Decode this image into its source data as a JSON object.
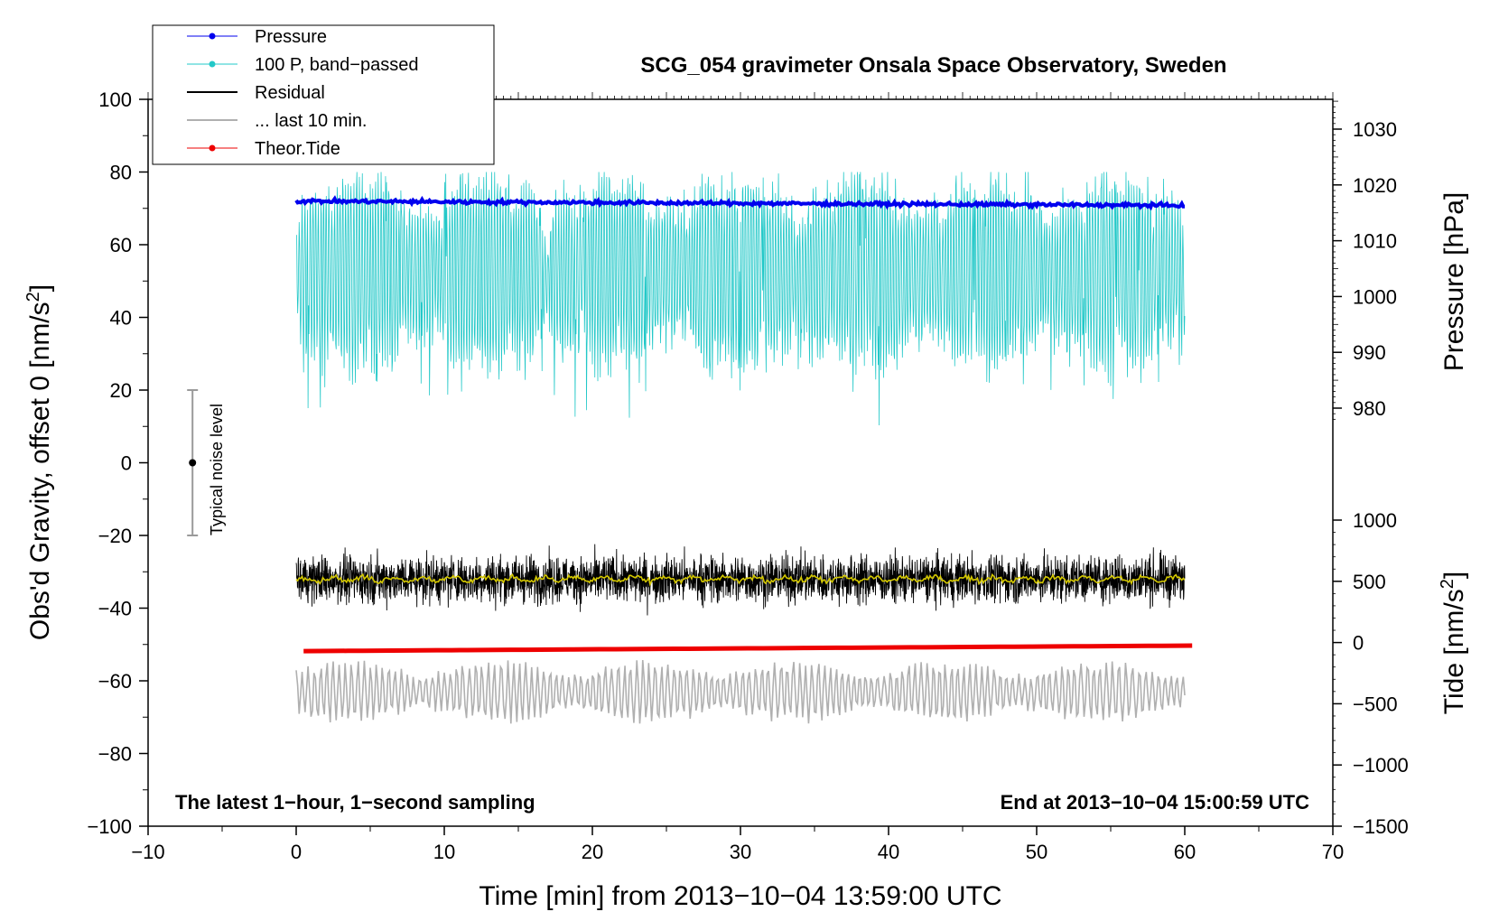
{
  "chart_data": {
    "type": "line",
    "title": "SCG_054 gravimeter Onsala Space Observatory, Sweden",
    "xlabel": "Time [min] from 2013−10−04 13:59:00 UTC",
    "ylabel_left": "Obs'd Gravity, offset 0 [nm/s²]",
    "ylabel_right_top": "Pressure [hPa]",
    "ylabel_right_bottom": "Tide [nm/s²]",
    "xlim": [
      -10,
      70
    ],
    "ylim_left": [
      -100,
      100
    ],
    "x_ticks": [
      "−10",
      "0",
      "10",
      "20",
      "30",
      "40",
      "50",
      "60",
      "70"
    ],
    "y_ticks_left": [
      "100",
      "80",
      "60",
      "40",
      "20",
      "0",
      "−20",
      "−40",
      "−60",
      "−80",
      "−100"
    ],
    "pressure_ticks": [
      "1030",
      "1020",
      "1010",
      "1000",
      "990",
      "980"
    ],
    "tide_ticks": [
      "1000",
      "500",
      "0",
      "−500",
      "−1000",
      "−1500"
    ],
    "pressure_axis": {
      "min": 980,
      "max": 1030
    },
    "tide_axis": {
      "min": -1500,
      "max": 1000
    },
    "annotation_left": "The latest 1−hour, 1−second sampling",
    "annotation_right": "End at 2013−10−04 15:00:59 UTC",
    "noise_label": "Typical noise level",
    "noise_bar": {
      "x": -7,
      "center": 0,
      "low": -20,
      "high": 20
    },
    "grid": false,
    "legend_position": "top-left",
    "series": [
      {
        "name": "Pressure",
        "color": "#0000ee",
        "x_range": [
          0,
          60
        ],
        "approx_level": 72,
        "pressure_start_hPa": 1016.5,
        "pressure_end_hPa": 1016.0
      },
      {
        "name": "100 P, band−passed",
        "color": "#22c8c8",
        "x_range": [
          0,
          60
        ],
        "approx_range": [
          5,
          80
        ]
      },
      {
        "name": "Residual",
        "color": "#000000",
        "x_range": [
          0,
          60
        ],
        "approx_mean": -32,
        "approx_range": [
          -44,
          -20
        ]
      },
      {
        "name": "... last 10 min.",
        "color": "#b0b0b0",
        "x_range": [
          0,
          60
        ],
        "approx_range": [
          -74,
          -52
        ]
      },
      {
        "name": "Theor.Tide",
        "color": "#ee0000",
        "x_range": [
          0.5,
          60.5
        ],
        "tide_start": -70,
        "tide_end": -25
      }
    ],
    "smoothed_residual_color": "#d4c800"
  }
}
